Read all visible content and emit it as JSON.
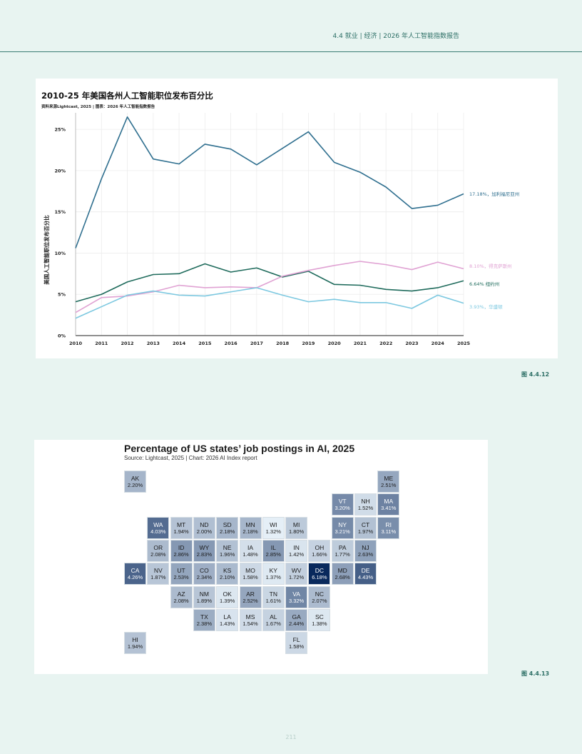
{
  "header": {
    "section": "4.4  就业 | 经济 | 2026 年人工智能指数报告"
  },
  "figure1": {
    "label": "图 4.4.12",
    "chart_data": {
      "type": "line",
      "title": "2010-25 年美国各州人工智能职位发布百分比",
      "source": "资料来源Lightcast, 2025 | 图表：2026 年人工智能指数报告",
      "ylabel": "美国人工智能职位发布百分比",
      "xlabel": "",
      "x": [
        2010,
        2011,
        2012,
        2013,
        2014,
        2015,
        2016,
        2017,
        2018,
        2019,
        2020,
        2021,
        2022,
        2023,
        2024,
        2025
      ],
      "ylim": [
        0,
        27
      ],
      "yticks": [
        0,
        5,
        10,
        15,
        20,
        25
      ],
      "ytick_labels": [
        "0%",
        "5%",
        "10%",
        "15%",
        "20%",
        "25%"
      ],
      "grid": true,
      "series": [
        {
          "name": "加利福尼亚州",
          "end_label": "17.18%，加利福尼亚州",
          "color": "#2f6f8f",
          "values": [
            10.6,
            19.0,
            26.5,
            21.4,
            20.8,
            23.2,
            22.6,
            20.7,
            22.7,
            24.7,
            21.0,
            19.8,
            18.0,
            15.4,
            15.8,
            17.18
          ]
        },
        {
          "name": "纽约州",
          "end_label": "6.64% 纽约州",
          "color": "#1f6b5c",
          "values": [
            4.1,
            5.0,
            6.5,
            7.4,
            7.5,
            8.7,
            7.7,
            8.2,
            7.1,
            7.8,
            6.2,
            6.1,
            5.6,
            5.4,
            5.8,
            6.64
          ]
        },
        {
          "name": "得克萨斯州",
          "end_label": "8.10%，得克萨斯州",
          "color": "#e0a2d3",
          "values": [
            2.8,
            4.6,
            4.8,
            5.3,
            6.1,
            5.8,
            5.9,
            5.8,
            7.2,
            7.9,
            8.5,
            9.0,
            8.6,
            8.0,
            8.9,
            8.1
          ]
        },
        {
          "name": "华盛顿",
          "end_label": "3.93%，华盛顿",
          "color": "#7cc8e0",
          "values": [
            2.1,
            3.5,
            4.9,
            5.4,
            4.9,
            4.8,
            5.3,
            5.8,
            4.9,
            4.1,
            4.4,
            4.0,
            4.0,
            3.3,
            4.9,
            3.93
          ]
        }
      ]
    }
  },
  "figure2": {
    "label": "图 4.4.13",
    "title": "Percentage of US states’ job postings in AI, 2025",
    "source": "Source: Lightcast, 2025 | Chart: 2026 AI Index report",
    "chart_data": {
      "type": "heatmap",
      "value_unit": "%",
      "grid_columns": 12,
      "grid_rows": 8,
      "states": [
        {
          "abbr": "AK",
          "label": "2.20%",
          "value": 2.2,
          "col": 0,
          "row": 0
        },
        {
          "abbr": "ME",
          "label": "2.51%",
          "value": 2.51,
          "col": 11,
          "row": 0
        },
        {
          "abbr": "VT",
          "label": "3.20%",
          "value": 3.2,
          "col": 9,
          "row": 1
        },
        {
          "abbr": "NH",
          "label": "1.52%",
          "value": 1.52,
          "col": 10,
          "row": 1
        },
        {
          "abbr": "MA",
          "label": "3.41%",
          "value": 3.41,
          "col": 11,
          "row": 1
        },
        {
          "abbr": "WA",
          "label": "4.03%",
          "value": 4.03,
          "col": 1,
          "row": 2
        },
        {
          "abbr": "MT",
          "label": "1.94%",
          "value": 1.94,
          "col": 2,
          "row": 2
        },
        {
          "abbr": "ND",
          "label": "2.00%",
          "value": 2.0,
          "col": 3,
          "row": 2
        },
        {
          "abbr": "SD",
          "label": "2.18%",
          "value": 2.18,
          "col": 4,
          "row": 2
        },
        {
          "abbr": "MN",
          "label": "2.18%",
          "value": 2.18,
          "col": 5,
          "row": 2
        },
        {
          "abbr": "WI",
          "label": "1.32%",
          "value": 1.32,
          "col": 6,
          "row": 2
        },
        {
          "abbr": "MI",
          "label": "1.80%",
          "value": 1.8,
          "col": 7,
          "row": 2
        },
        {
          "abbr": "NY",
          "label": "3.21%",
          "value": 3.21,
          "col": 9,
          "row": 2
        },
        {
          "abbr": "CT",
          "label": "1.97%",
          "value": 1.97,
          "col": 10,
          "row": 2
        },
        {
          "abbr": "RI",
          "label": "3.11%",
          "value": 3.11,
          "col": 11,
          "row": 2
        },
        {
          "abbr": "OR",
          "label": "2.08%",
          "value": 2.08,
          "col": 1,
          "row": 3
        },
        {
          "abbr": "ID",
          "label": "2.86%",
          "value": 2.86,
          "col": 2,
          "row": 3
        },
        {
          "abbr": "WY",
          "label": "2.83%",
          "value": 2.83,
          "col": 3,
          "row": 3
        },
        {
          "abbr": "NE",
          "label": "1.96%",
          "value": 1.96,
          "col": 4,
          "row": 3
        },
        {
          "abbr": "IA",
          "label": "1.48%",
          "value": 1.48,
          "col": 5,
          "row": 3
        },
        {
          "abbr": "IL",
          "label": "2.85%",
          "value": 2.85,
          "col": 6,
          "row": 3
        },
        {
          "abbr": "IN",
          "label": "1.42%",
          "value": 1.42,
          "col": 7,
          "row": 3
        },
        {
          "abbr": "OH",
          "label": "1.66%",
          "value": 1.66,
          "col": 8,
          "row": 3
        },
        {
          "abbr": "PA",
          "label": "1.77%",
          "value": 1.77,
          "col": 9,
          "row": 3
        },
        {
          "abbr": "NJ",
          "label": "2.63%",
          "value": 2.63,
          "col": 10,
          "row": 3
        },
        {
          "abbr": "CA",
          "label": "4.26%",
          "value": 4.26,
          "col": 0,
          "row": 4
        },
        {
          "abbr": "NV",
          "label": "1.87%",
          "value": 1.87,
          "col": 1,
          "row": 4
        },
        {
          "abbr": "UT",
          "label": "2.53%",
          "value": 2.53,
          "col": 2,
          "row": 4
        },
        {
          "abbr": "CO",
          "label": "2.34%",
          "value": 2.34,
          "col": 3,
          "row": 4
        },
        {
          "abbr": "KS",
          "label": "2.10%",
          "value": 2.1,
          "col": 4,
          "row": 4
        },
        {
          "abbr": "MO",
          "label": "1.58%",
          "value": 1.58,
          "col": 5,
          "row": 4
        },
        {
          "abbr": "KY",
          "label": "1.37%",
          "value": 1.37,
          "col": 6,
          "row": 4
        },
        {
          "abbr": "WV",
          "label": "1.72%",
          "value": 1.72,
          "col": 7,
          "row": 4
        },
        {
          "abbr": "DC",
          "label": "6.18%",
          "value": 6.18,
          "col": 8,
          "row": 4
        },
        {
          "abbr": "MD",
          "label": "2.68%",
          "value": 2.68,
          "col": 9,
          "row": 4
        },
        {
          "abbr": "DE",
          "label": "4.43%",
          "value": 4.43,
          "col": 10,
          "row": 4
        },
        {
          "abbr": "AZ",
          "label": "2.08%",
          "value": 2.08,
          "col": 2,
          "row": 5
        },
        {
          "abbr": "NM",
          "label": "1.89%",
          "value": 1.89,
          "col": 3,
          "row": 5
        },
        {
          "abbr": "OK",
          "label": "1.39%",
          "value": 1.39,
          "col": 4,
          "row": 5
        },
        {
          "abbr": "AR",
          "label": "2.52%",
          "value": 2.52,
          "col": 5,
          "row": 5
        },
        {
          "abbr": "TN",
          "label": "1.61%",
          "value": 1.61,
          "col": 6,
          "row": 5
        },
        {
          "abbr": "VA",
          "label": "3.32%",
          "value": 3.32,
          "col": 7,
          "row": 5
        },
        {
          "abbr": "NC",
          "label": "2.07%",
          "value": 2.07,
          "col": 8,
          "row": 5
        },
        {
          "abbr": "TX",
          "label": "2.38%",
          "value": 2.38,
          "col": 3,
          "row": 6
        },
        {
          "abbr": "LA",
          "label": "1.43%",
          "value": 1.43,
          "col": 4,
          "row": 6
        },
        {
          "abbr": "MS",
          "label": "1.54%",
          "value": 1.54,
          "col": 5,
          "row": 6
        },
        {
          "abbr": "AL",
          "label": "1.67%",
          "value": 1.67,
          "col": 6,
          "row": 6
        },
        {
          "abbr": "GA",
          "label": "2.44%",
          "value": 2.44,
          "col": 7,
          "row": 6
        },
        {
          "abbr": "SC",
          "label": "1.38%",
          "value": 1.38,
          "col": 8,
          "row": 6
        },
        {
          "abbr": "HI",
          "label": "1.94%",
          "value": 1.94,
          "col": 0,
          "row": 7
        },
        {
          "abbr": "FL",
          "label": "1.58%",
          "value": 1.58,
          "col": 7,
          "row": 7
        }
      ]
    }
  },
  "page_number": "211"
}
